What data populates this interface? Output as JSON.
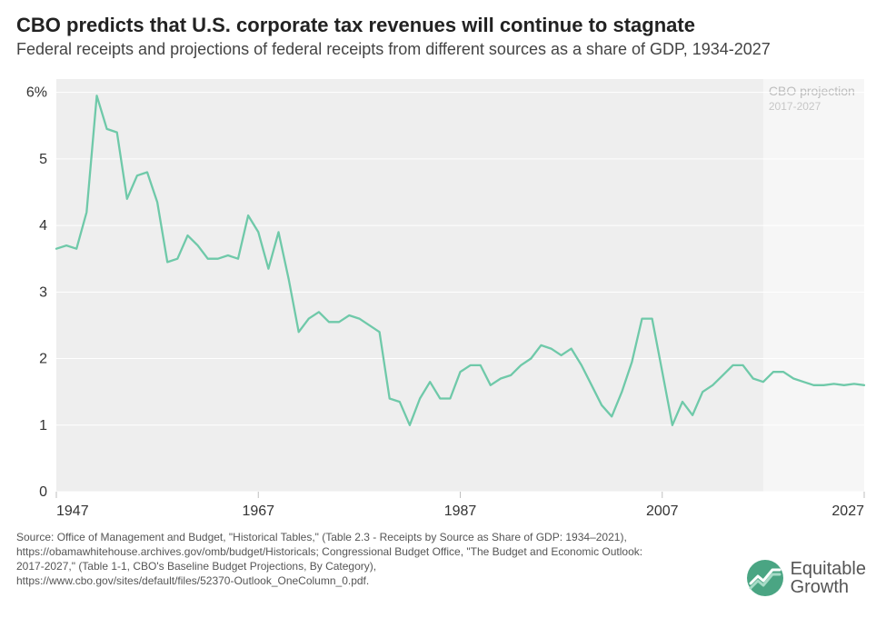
{
  "title": "CBO predicts that U.S. corporate tax revenues will continue to stagnate",
  "subtitle": "Federal receipts and projections of federal receipts from different sources as a share of GDP, 1934-2027",
  "chart": {
    "type": "line",
    "x_start": 1947,
    "x_end": 2027,
    "projection_start": 2017,
    "projection_end": 2027,
    "projection_label": "CBO projection",
    "projection_sublabel": "2017-2027",
    "x_ticks": [
      1947,
      1967,
      1987,
      2007,
      2027
    ],
    "y_min": 0,
    "y_max": 6.2,
    "y_ticks": [
      0,
      1,
      2,
      3,
      4,
      5,
      6
    ],
    "y_tick_labels": [
      "0",
      "1",
      "2",
      "3",
      "4",
      "5",
      "6%"
    ],
    "plot_bg": "#eeeeee",
    "projection_bg": "#f6f6f6",
    "grid_color": "#ffffff",
    "line_color": "#6fc9a9",
    "line_width": 2.3,
    "axis_tick_color": "#bfbfbf",
    "tick_fontsize": 16,
    "years": [
      1947,
      1948,
      1949,
      1950,
      1951,
      1952,
      1953,
      1954,
      1955,
      1956,
      1957,
      1958,
      1959,
      1960,
      1961,
      1962,
      1963,
      1964,
      1965,
      1966,
      1967,
      1968,
      1969,
      1970,
      1971,
      1972,
      1973,
      1974,
      1975,
      1976,
      1977,
      1978,
      1979,
      1980,
      1981,
      1982,
      1983,
      1984,
      1985,
      1986,
      1987,
      1988,
      1989,
      1990,
      1991,
      1992,
      1993,
      1994,
      1995,
      1996,
      1997,
      1998,
      1999,
      2000,
      2001,
      2002,
      2003,
      2004,
      2005,
      2006,
      2007,
      2008,
      2009,
      2010,
      2011,
      2012,
      2013,
      2014,
      2015,
      2016,
      2017,
      2018,
      2019,
      2020,
      2021,
      2022,
      2023,
      2024,
      2025,
      2026,
      2027
    ],
    "values": [
      3.65,
      3.7,
      3.65,
      4.2,
      5.95,
      5.45,
      5.4,
      4.4,
      4.75,
      4.8,
      4.35,
      3.45,
      3.5,
      3.85,
      3.7,
      3.5,
      3.5,
      3.55,
      3.5,
      4.15,
      3.9,
      3.35,
      3.9,
      3.2,
      2.4,
      2.6,
      2.7,
      2.55,
      2.55,
      2.65,
      2.6,
      2.5,
      2.4,
      1.4,
      1.35,
      1.0,
      1.4,
      1.65,
      1.4,
      1.4,
      1.8,
      1.9,
      1.9,
      1.6,
      1.7,
      1.75,
      1.9,
      2.0,
      2.2,
      2.15,
      2.05,
      2.15,
      1.9,
      1.6,
      1.3,
      1.13,
      1.5,
      1.95,
      2.6,
      2.6,
      1.8,
      1.0,
      1.35,
      1.15,
      1.5,
      1.6,
      1.75,
      1.9,
      1.9,
      1.7,
      1.65,
      1.8,
      1.8,
      1.7,
      1.65,
      1.6,
      1.6,
      1.62,
      1.6,
      1.62,
      1.6
    ]
  },
  "source_lines": [
    "Source: Office of Management and Budget, \"Historical Tables,\" (Table 2.3 - Receipts by Source as Share of GDP: 1934–2021),",
    "https://obamawhitehouse.archives.gov/omb/budget/Historicals; Congressional Budget Office, \"The Budget and Economic Outlook:",
    "2017-2027,\" (Table 1-1, CBO's Baseline Budget Projections, By Category),",
    "https://www.cbo.gov/sites/default/files/52370-Outlook_OneColumn_0.pdf."
  ],
  "logo": {
    "line1": "Equitable",
    "line2": "Growth",
    "circle_color": "#4aa583",
    "text_color": "#555555"
  }
}
